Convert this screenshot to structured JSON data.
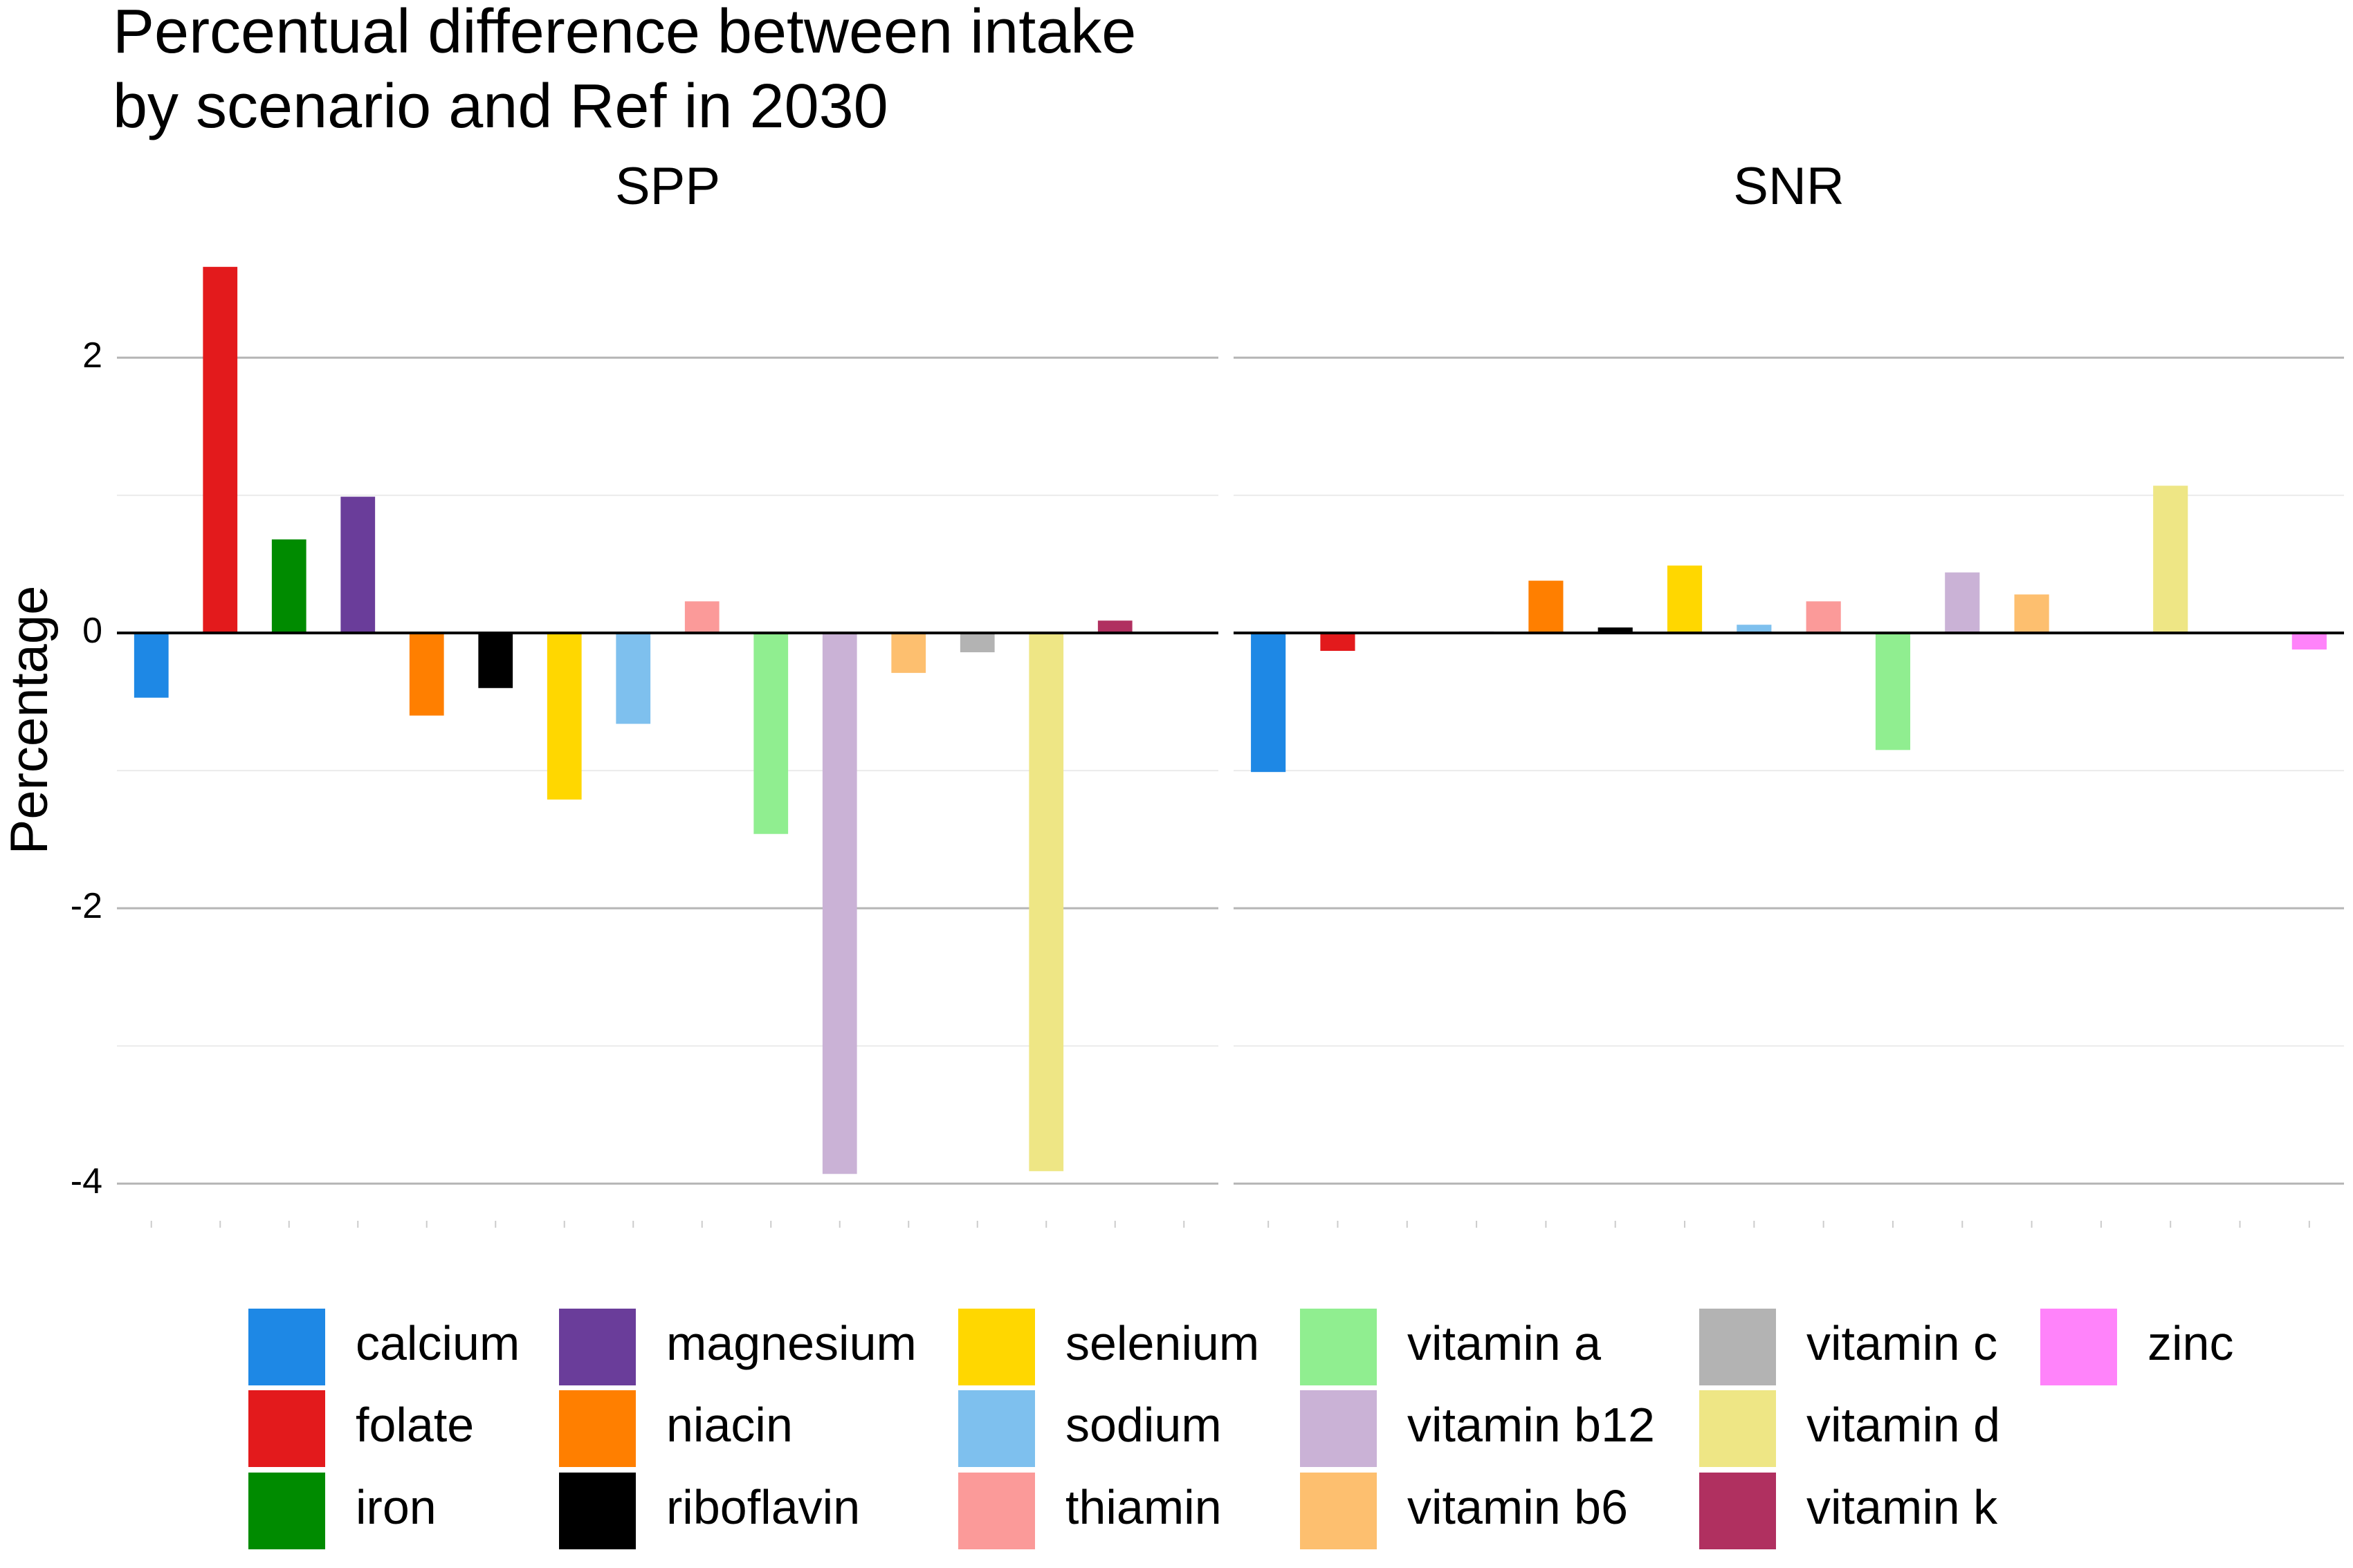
{
  "chart_data": {
    "type": "bar",
    "title": [
      "Percentual difference between intake",
      "by scenario and Ref in 2030"
    ],
    "y_label": "Percentage",
    "categories": [
      "calcium",
      "folate",
      "iron",
      "magnesium",
      "niacin",
      "riboflavin",
      "selenium",
      "sodium",
      "thiamin",
      "vitamin a",
      "vitamin b12",
      "vitamin b6",
      "vitamin c",
      "vitamin d",
      "vitamin k",
      "zinc"
    ],
    "colors": [
      "#1e88e5",
      "#e31a1c",
      "#008b00",
      "#6a3d9a",
      "#ff7f00",
      "#000000",
      "#ffd700",
      "#7ec0ee",
      "#fb9a99",
      "#90ee90",
      "#cab2d6",
      "#fdbf6f",
      "#b3b3b3",
      "#eee685",
      "#b03060",
      "#ff83fa"
    ],
    "panels": [
      {
        "title": "SPP",
        "values": [
          -0.47,
          2.66,
          0.68,
          0.99,
          -0.6,
          -0.4,
          -1.21,
          -0.66,
          0.23,
          -1.46,
          -3.93,
          -0.29,
          -0.14,
          -3.91,
          0.09,
          0.01
        ]
      },
      {
        "title": "SNR",
        "values": [
          -1.01,
          -0.13,
          0,
          0.01,
          0.38,
          0.04,
          0.49,
          0.06,
          0.23,
          -0.85,
          0.44,
          0.28,
          0.01,
          1.07,
          0,
          -0.12
        ]
      }
    ],
    "ylim": [
      -4.2,
      2.85
    ],
    "yticks": [
      -4,
      -2,
      0,
      2
    ],
    "minor_yticks": [
      -3,
      -1,
      1
    ],
    "grid": true
  }
}
